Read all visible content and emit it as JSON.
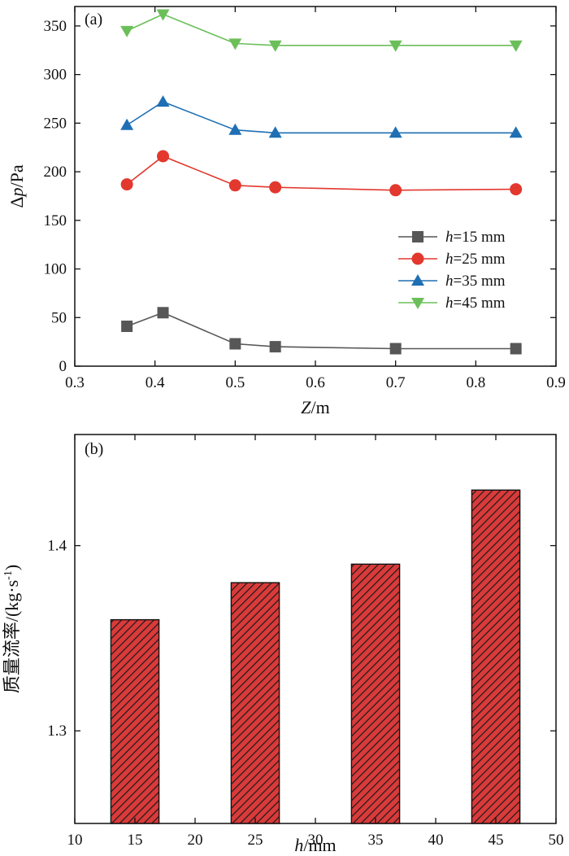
{
  "chart_data": [
    {
      "type": "line",
      "panel_label": "(a)",
      "xlabel": {
        "var": "Z",
        "unit": "/m"
      },
      "ylabel": {
        "prefix": "Δ",
        "var": "p",
        "unit": "/Pa"
      },
      "xlim": [
        0.3,
        0.9
      ],
      "ylim": [
        0,
        370
      ],
      "xticks": [
        0.3,
        0.4,
        0.5,
        0.6,
        0.7,
        0.8,
        0.9
      ],
      "xtick_labels": [
        "0.3",
        "0.4",
        "0.5",
        "0.6",
        "0.7",
        "0.8",
        "0.9"
      ],
      "yticks": [
        0,
        50,
        100,
        150,
        200,
        250,
        300,
        350
      ],
      "ytick_labels": [
        "0",
        "50",
        "100",
        "150",
        "200",
        "250",
        "300",
        "350"
      ],
      "legend_position": "right",
      "x": [
        0.365,
        0.41,
        0.5,
        0.55,
        0.7,
        0.85
      ],
      "series": [
        {
          "name": "=15 mm",
          "name_var": "h",
          "color": "#575757",
          "marker": "square",
          "values": [
            41,
            55,
            23,
            20,
            18,
            18
          ]
        },
        {
          "name": "=25 mm",
          "name_var": "h",
          "color": "#e2382e",
          "marker": "circle",
          "values": [
            187,
            216,
            186,
            184,
            181,
            182
          ]
        },
        {
          "name": "=35 mm",
          "name_var": "h",
          "color": "#1f6fb4",
          "marker": "triangle-up",
          "values": [
            248,
            272,
            243,
            240,
            240,
            240
          ]
        },
        {
          "name": "=45 mm",
          "name_var": "h",
          "color": "#6bbf59",
          "marker": "triangle-down",
          "values": [
            345,
            362,
            332,
            330,
            330,
            330
          ]
        }
      ]
    },
    {
      "type": "bar",
      "panel_label": "(b)",
      "xlabel": {
        "var": "h",
        "unit": "/mm"
      },
      "ylabel": {
        "text": "质量流率/(kg·s",
        "sup": "-1",
        "close": ")"
      },
      "xlim": [
        10,
        50
      ],
      "ylim": [
        1.25,
        1.46
      ],
      "xticks": [
        10,
        15,
        20,
        25,
        30,
        35,
        40,
        45,
        50
      ],
      "xtick_labels": [
        "10",
        "15",
        "20",
        "25",
        "30",
        "35",
        "40",
        "45",
        "50"
      ],
      "yticks": [
        1.3,
        1.4
      ],
      "ytick_labels": [
        "1.3",
        "1.4"
      ],
      "categories": [
        15,
        25,
        35,
        45
      ],
      "values": [
        1.36,
        1.38,
        1.39,
        1.43
      ],
      "bar_color": "#d93a3a",
      "bar_pattern": "diagonal-hatch",
      "bar_width": 4
    }
  ]
}
